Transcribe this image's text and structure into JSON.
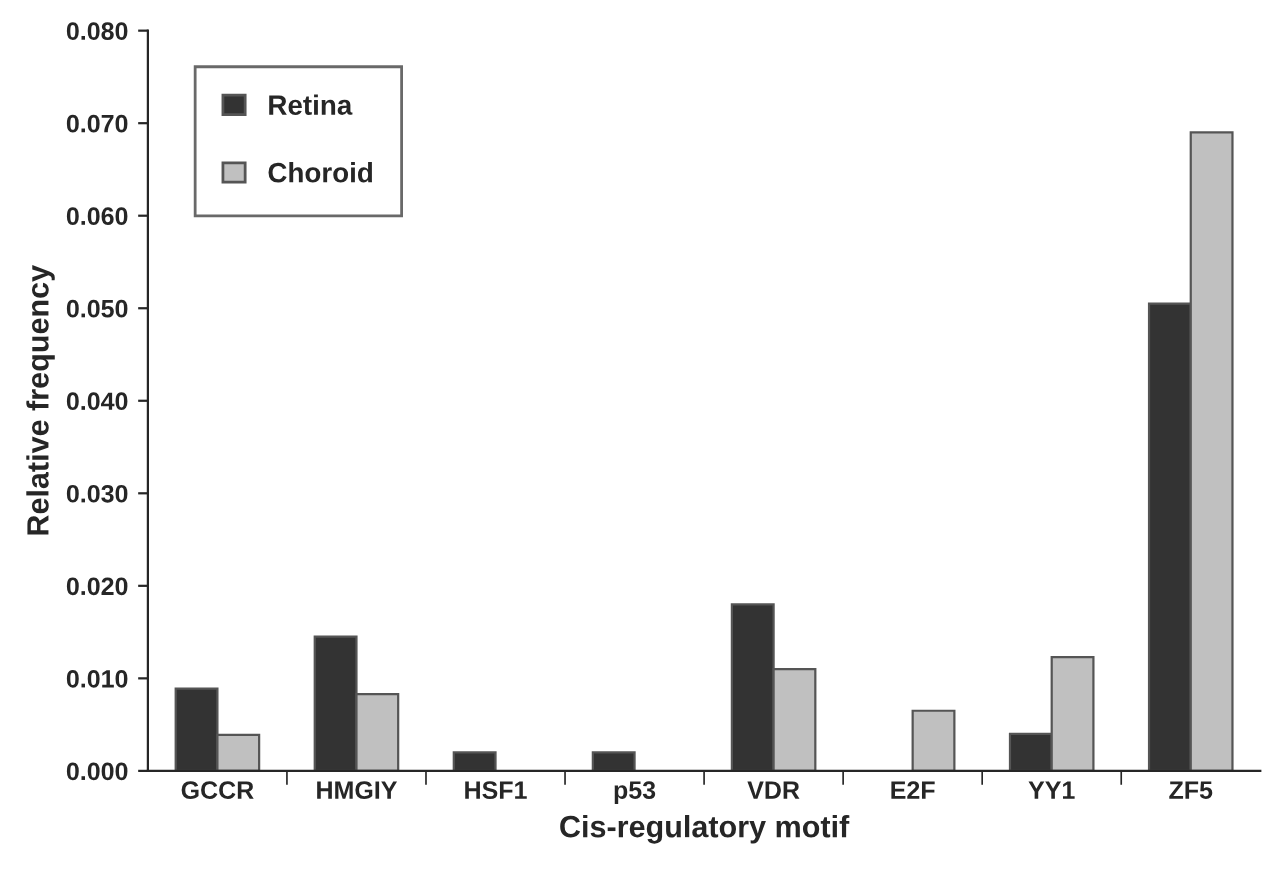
{
  "chart_data": {
    "type": "bar",
    "xlabel": "Cis-regulatory motif",
    "ylabel": "Relative frequency",
    "categories": [
      "GCCR",
      "HMGIY",
      "HSF1",
      "p53",
      "VDR",
      "E2F",
      "YY1",
      "ZF5"
    ],
    "series": [
      {
        "name": "Retina",
        "color": "#333333",
        "values": [
          0.0089,
          0.0145,
          0.002,
          0.002,
          0.018,
          0,
          0.004,
          0.0505
        ]
      },
      {
        "name": "Choroid",
        "color": "#c0c0c0",
        "values": [
          0.0039,
          0.0083,
          0,
          0,
          0.011,
          0.0065,
          0.0123,
          0.069
        ]
      }
    ],
    "ylim": [
      0,
      0.08
    ],
    "yticks": [
      {
        "value": 0,
        "label": "0.000"
      },
      {
        "value": 0.01,
        "label": "0.010"
      },
      {
        "value": 0.02,
        "label": "0.020"
      },
      {
        "value": 0.03,
        "label": "0.030"
      },
      {
        "value": 0.04,
        "label": "0.040"
      },
      {
        "value": 0.05,
        "label": "0.050"
      },
      {
        "value": 0.06,
        "label": "0.060"
      },
      {
        "value": 0.07,
        "label": "0.070"
      },
      {
        "value": 0.08,
        "label": "0.080"
      }
    ],
    "grid": false,
    "legend": "top left"
  }
}
